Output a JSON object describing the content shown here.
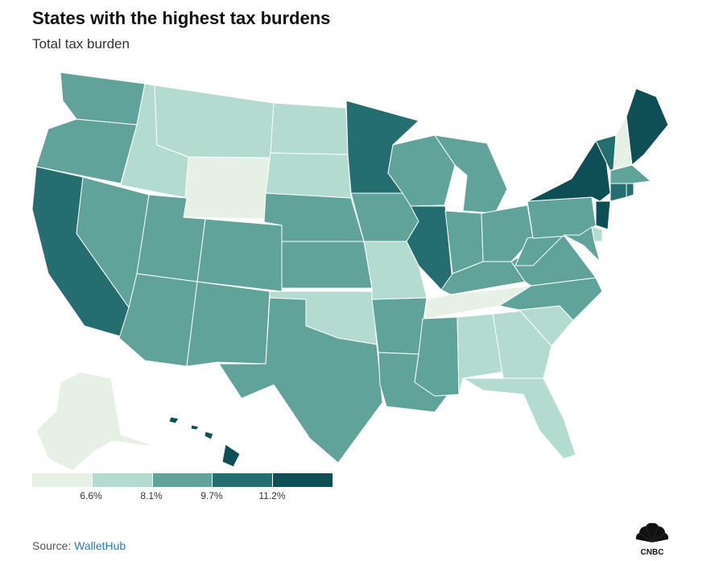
{
  "header": {
    "title": "States with the highest tax burdens",
    "subtitle": "Total tax burden"
  },
  "legend": {
    "colors": [
      "#e4f1e4",
      "#b3dbd0",
      "#5fa39b",
      "#256e6f",
      "#0d4f55"
    ],
    "thresholds": [
      "6.6%",
      "8.1%",
      "9.7%",
      "11.2%"
    ]
  },
  "states": [
    {
      "id": "WA",
      "bin": 2
    },
    {
      "id": "OR",
      "bin": 2
    },
    {
      "id": "CA",
      "bin": 3
    },
    {
      "id": "ID",
      "bin": 1
    },
    {
      "id": "NV",
      "bin": 2
    },
    {
      "id": "MT",
      "bin": 1
    },
    {
      "id": "WY",
      "bin": 0
    },
    {
      "id": "UT",
      "bin": 2
    },
    {
      "id": "AZ",
      "bin": 2
    },
    {
      "id": "CO",
      "bin": 2
    },
    {
      "id": "NM",
      "bin": 2
    },
    {
      "id": "ND",
      "bin": 1
    },
    {
      "id": "SD",
      "bin": 1
    },
    {
      "id": "NE",
      "bin": 2
    },
    {
      "id": "KS",
      "bin": 2
    },
    {
      "id": "OK",
      "bin": 1
    },
    {
      "id": "TX",
      "bin": 2
    },
    {
      "id": "MN",
      "bin": 3
    },
    {
      "id": "IA",
      "bin": 2
    },
    {
      "id": "MO",
      "bin": 1
    },
    {
      "id": "AR",
      "bin": 2
    },
    {
      "id": "LA",
      "bin": 2
    },
    {
      "id": "WI",
      "bin": 2
    },
    {
      "id": "IL",
      "bin": 3
    },
    {
      "id": "MI",
      "bin": 2
    },
    {
      "id": "IN",
      "bin": 2
    },
    {
      "id": "OH",
      "bin": 2
    },
    {
      "id": "KY",
      "bin": 2
    },
    {
      "id": "TN",
      "bin": 0
    },
    {
      "id": "MS",
      "bin": 2
    },
    {
      "id": "AL",
      "bin": 1
    },
    {
      "id": "GA",
      "bin": 1
    },
    {
      "id": "FL",
      "bin": 1
    },
    {
      "id": "SC",
      "bin": 1
    },
    {
      "id": "NC",
      "bin": 2
    },
    {
      "id": "VA",
      "bin": 2
    },
    {
      "id": "WV",
      "bin": 2
    },
    {
      "id": "PA",
      "bin": 2
    },
    {
      "id": "NY",
      "bin": 4
    },
    {
      "id": "VT",
      "bin": 3
    },
    {
      "id": "NH",
      "bin": 0
    },
    {
      "id": "ME",
      "bin": 4
    },
    {
      "id": "MA",
      "bin": 2
    },
    {
      "id": "CT",
      "bin": 3
    },
    {
      "id": "RI",
      "bin": 3
    },
    {
      "id": "NJ",
      "bin": 4
    },
    {
      "id": "DE",
      "bin": 1
    },
    {
      "id": "MD",
      "bin": 2
    },
    {
      "id": "AK",
      "bin": 0
    },
    {
      "id": "HI",
      "bin": 4
    }
  ],
  "footer": {
    "source_label": "Source: ",
    "source_name": "WalletHub",
    "logo_text": "CNBC"
  }
}
